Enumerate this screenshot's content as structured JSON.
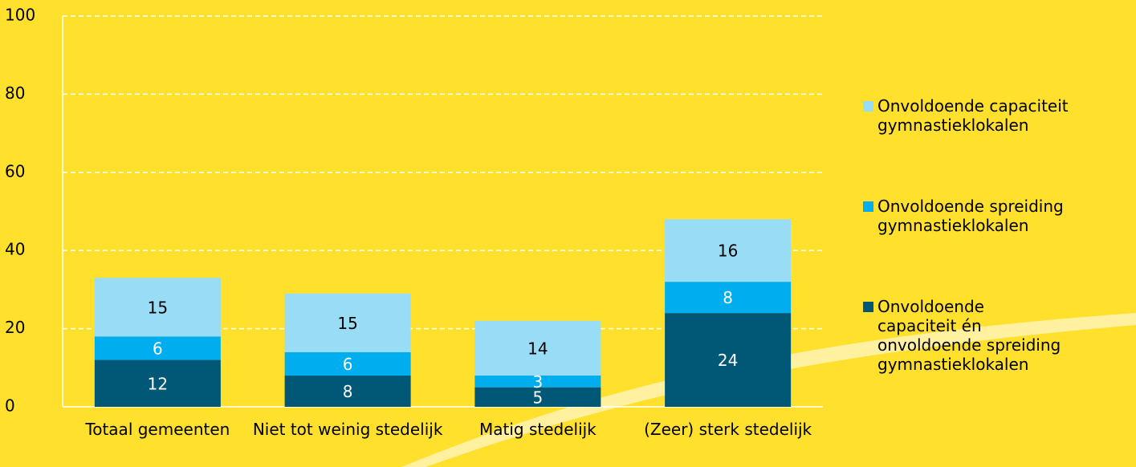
{
  "chart_data": {
    "type": "stacked_bar",
    "categories": [
      "Totaal gemeenten",
      "Niet tot weinig stedelijk",
      "Matig stedelijk",
      "(Zeer) sterk stedelijk"
    ],
    "series": [
      {
        "name": "Onvoldoende capaciteit én onvoldoende spreiding gymnastieklokalen",
        "color": "#005776",
        "values": [
          12,
          8,
          5,
          24
        ]
      },
      {
        "name": "Onvoldoende spreiding gymnastieklokalen",
        "color": "#00aeef",
        "values": [
          6,
          6,
          3,
          8
        ]
      },
      {
        "name": "Onvoldoende capaciteit gymnastieklokalen",
        "color": "#99dcf6",
        "values": [
          15,
          15,
          14,
          16
        ]
      }
    ],
    "ylim": [
      0,
      100
    ],
    "yticks": [
      0,
      20,
      40,
      60,
      80,
      100
    ],
    "grid": true,
    "legend": "right"
  }
}
